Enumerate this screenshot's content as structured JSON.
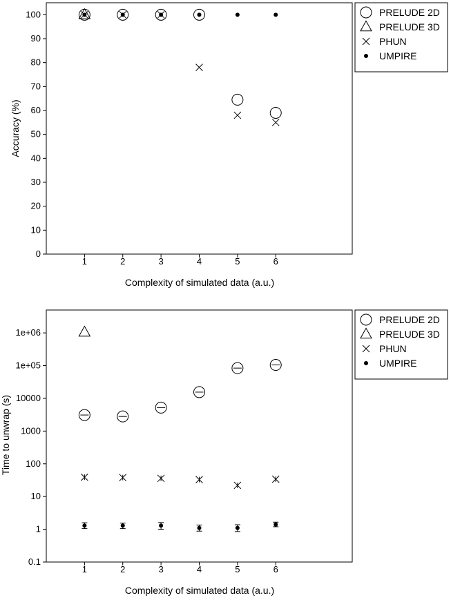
{
  "chart_data": [
    {
      "type": "scatter",
      "xlabel": "Complexity of simulated data (a.u.)",
      "ylabel": "Accuracy (%)",
      "x": [
        1,
        2,
        3,
        4,
        5,
        6
      ],
      "xticks": [
        "1",
        "2",
        "3",
        "4",
        "5",
        "6"
      ],
      "xlim": [
        0,
        8
      ],
      "ylim": [
        0,
        105
      ],
      "yticks": [
        "0",
        "10",
        "20",
        "30",
        "40",
        "50",
        "60",
        "70",
        "80",
        "90",
        "100"
      ],
      "yscale": "linear",
      "grid": false,
      "legend_position": "outside-right-top",
      "series": [
        {
          "name": "PRELUDE 2D",
          "marker": "circle",
          "x": [
            1,
            2,
            3,
            4,
            5,
            6
          ],
          "y": [
            100,
            100,
            100,
            100,
            64.5,
            59
          ]
        },
        {
          "name": "PRELUDE 3D",
          "marker": "triangle",
          "x": [
            1
          ],
          "y": [
            100
          ]
        },
        {
          "name": "PHUN",
          "marker": "cross",
          "x": [
            1,
            2,
            3,
            4,
            5,
            6
          ],
          "y": [
            100,
            100,
            100,
            78,
            58,
            55
          ]
        },
        {
          "name": "UMPIRE",
          "marker": "dot",
          "x": [
            1,
            2,
            3,
            4,
            5,
            6
          ],
          "y": [
            100,
            100,
            100,
            100,
            100,
            100
          ]
        }
      ]
    },
    {
      "type": "scatter",
      "xlabel": "Complexity of simulated data (a.u.)",
      "ylabel": "Time to unwrap (s)",
      "x": [
        1,
        2,
        3,
        4,
        5,
        6
      ],
      "xticks": [
        "1",
        "2",
        "3",
        "4",
        "5",
        "6"
      ],
      "xlim": [
        0,
        8
      ],
      "ylim": [
        0.1,
        5000000
      ],
      "yticks": [
        "0.1",
        "1",
        "10",
        "100",
        "1000",
        "10000",
        "1e+05",
        "1e+06"
      ],
      "yscale": "log",
      "grid": false,
      "legend_position": "outside-right-top",
      "series": [
        {
          "name": "PRELUDE 2D",
          "marker": "circle",
          "x": [
            1,
            2,
            3,
            4,
            5,
            6
          ],
          "y": [
            3100,
            2800,
            5200,
            15500,
            84000,
            105000
          ]
        },
        {
          "name": "PRELUDE 3D",
          "marker": "triangle",
          "x": [
            1
          ],
          "y": [
            1050000
          ]
        },
        {
          "name": "PHUN",
          "marker": "cross",
          "x": [
            1,
            2,
            3,
            4,
            5,
            6
          ],
          "y": [
            39,
            38,
            36,
            33,
            22,
            34
          ]
        },
        {
          "name": "UMPIRE",
          "marker": "dot",
          "x": [
            1,
            2,
            3,
            4,
            5,
            6
          ],
          "y": [
            1.3,
            1.3,
            1.3,
            1.1,
            1.1,
            1.4
          ],
          "error_low": [
            1.05,
            1.05,
            1.0,
            0.88,
            0.85,
            1.2
          ],
          "error_high": [
            1.58,
            1.55,
            1.6,
            1.35,
            1.38,
            1.65
          ]
        }
      ]
    }
  ]
}
